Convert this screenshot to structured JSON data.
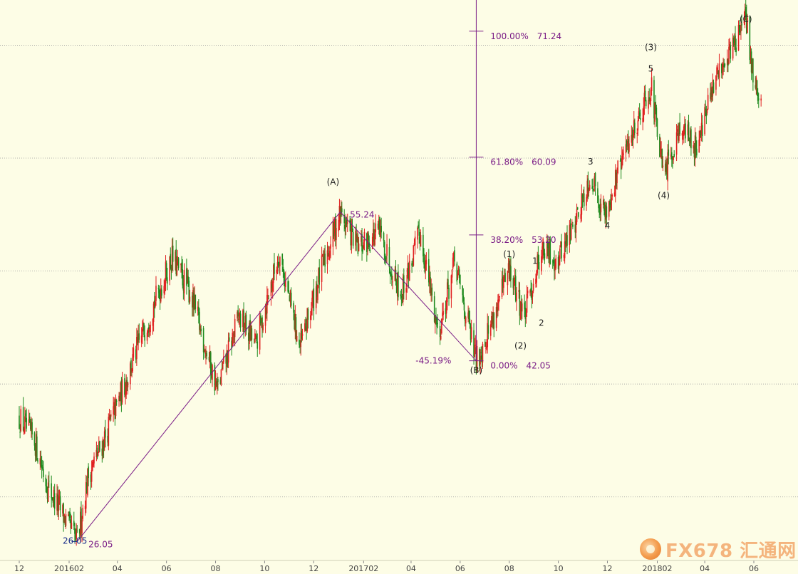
{
  "chart_data": {
    "type": "candlestick",
    "colors": {
      "background": "#fdfde6",
      "up": "#e02020",
      "down": "#1e8a1e",
      "fib": "#7a1c86",
      "gridline": "#9a9a9a",
      "price_label_blue": "#1b2f8a"
    },
    "x_ticks": [
      "12",
      "201602",
      "04",
      "06",
      "08",
      "10",
      "12",
      "201702",
      "04",
      "06",
      "08",
      "10",
      "12",
      "201802",
      "04",
      "06"
    ],
    "grid": "horizontal-dotted",
    "price_path": [
      [
        "2015-12-01",
        37.0
      ],
      [
        "2015-12-20",
        35.0
      ],
      [
        "2016-01-05",
        31.0
      ],
      [
        "2016-01-20",
        29.0
      ],
      [
        "2016-02-11",
        26.05
      ],
      [
        "2016-02-25",
        32.0
      ],
      [
        "2016-03-15",
        35.0
      ],
      [
        "2016-04-10",
        40.0
      ],
      [
        "2016-05-05",
        45.0
      ],
      [
        "2016-06-08",
        51.2
      ],
      [
        "2016-07-01",
        48.0
      ],
      [
        "2016-08-03",
        39.5
      ],
      [
        "2016-08-30",
        46.0
      ],
      [
        "2016-09-20",
        43.5
      ],
      [
        "2016-10-19",
        51.6
      ],
      [
        "2016-11-14",
        43.2
      ],
      [
        "2016-12-10",
        50.0
      ],
      [
        "2017-01-03",
        55.24
      ],
      [
        "2017-01-25",
        52.0
      ],
      [
        "2017-02-20",
        53.5
      ],
      [
        "2017-03-20",
        48.0
      ],
      [
        "2017-04-12",
        53.4
      ],
      [
        "2017-05-05",
        44.5
      ],
      [
        "2017-05-25",
        50.8
      ],
      [
        "2017-06-21",
        42.05
      ],
      [
        "2017-07-10",
        45.5
      ],
      [
        "2017-08-01",
        50.0
      ],
      [
        "2017-08-20",
        46.0
      ],
      [
        "2017-09-10",
        52.0
      ],
      [
        "2017-09-30",
        51.0
      ],
      [
        "2017-10-20",
        54.0
      ],
      [
        "2017-11-10",
        58.5
      ],
      [
        "2017-11-28",
        55.0
      ],
      [
        "2017-12-20",
        60.0
      ],
      [
        "2018-01-24",
        66.5
      ],
      [
        "2018-02-09",
        58.1
      ],
      [
        "2018-03-01",
        63.0
      ],
      [
        "2018-03-20",
        61.0
      ],
      [
        "2018-04-20",
        68.0
      ],
      [
        "2018-05-10",
        70.5
      ],
      [
        "2018-05-22",
        72.3
      ],
      [
        "2018-06-01",
        67.0
      ],
      [
        "2018-06-10",
        64.5
      ]
    ],
    "abc_lines": [
      [
        "2016-02-11",
        26.05,
        "2017-01-03",
        55.24
      ],
      [
        "2017-01-03",
        55.24,
        "2017-06-21",
        42.05
      ]
    ],
    "fibonacci": {
      "levels": [
        {
          "pct": "100.00%",
          "price": 71.24
        },
        {
          "pct": "61.80%",
          "price": 60.09
        },
        {
          "pct": "38.20%",
          "price": 53.2
        },
        {
          "pct": "0.00%",
          "price": 42.05
        }
      ],
      "anchor_date": "2017-06-21"
    },
    "annotations": [
      {
        "text": "(A)",
        "date": "2016-12-25",
        "price": 57.9,
        "type": "wave"
      },
      {
        "text": "(B)",
        "date": "2017-06-21",
        "price": 41.2,
        "type": "wave"
      },
      {
        "text": "(1)",
        "date": "2017-08-01",
        "price": 51.5,
        "type": "wave"
      },
      {
        "text": "(2)",
        "date": "2017-08-15",
        "price": 43.4,
        "type": "wave"
      },
      {
        "text": "1",
        "date": "2017-09-02",
        "price": 50.9,
        "type": "wave"
      },
      {
        "text": "2",
        "date": "2017-09-10",
        "price": 45.4,
        "type": "wave"
      },
      {
        "text": "3",
        "date": "2017-11-10",
        "price": 59.7,
        "type": "wave"
      },
      {
        "text": "4",
        "date": "2017-12-01",
        "price": 54.0,
        "type": "wave"
      },
      {
        "text": "(3)",
        "date": "2018-01-24",
        "price": 69.8,
        "type": "wave"
      },
      {
        "text": "5",
        "date": "2018-01-24",
        "price": 67.9,
        "type": "wave"
      },
      {
        "text": "(4)",
        "date": "2018-02-09",
        "price": 56.7,
        "type": "wave"
      },
      {
        "text": "(C)",
        "date": "2018-05-22",
        "price": 72.3,
        "type": "wave"
      },
      {
        "text": "55.24",
        "date": "2017-01-15",
        "price": 55.0,
        "type": "fib"
      },
      {
        "text": "-45.19%",
        "date": "2017-05-21",
        "price": 42.05,
        "type": "fib"
      },
      {
        "text": "26.05",
        "date": "2016-02-25",
        "price": 25.8,
        "type": "fib"
      },
      {
        "text": "26.05",
        "date": "2016-01-24",
        "price": 26.1,
        "type": "blue"
      }
    ],
    "ylim": [
      24.5,
      74.0
    ]
  },
  "watermark": {
    "text": "FX678 汇通网"
  }
}
